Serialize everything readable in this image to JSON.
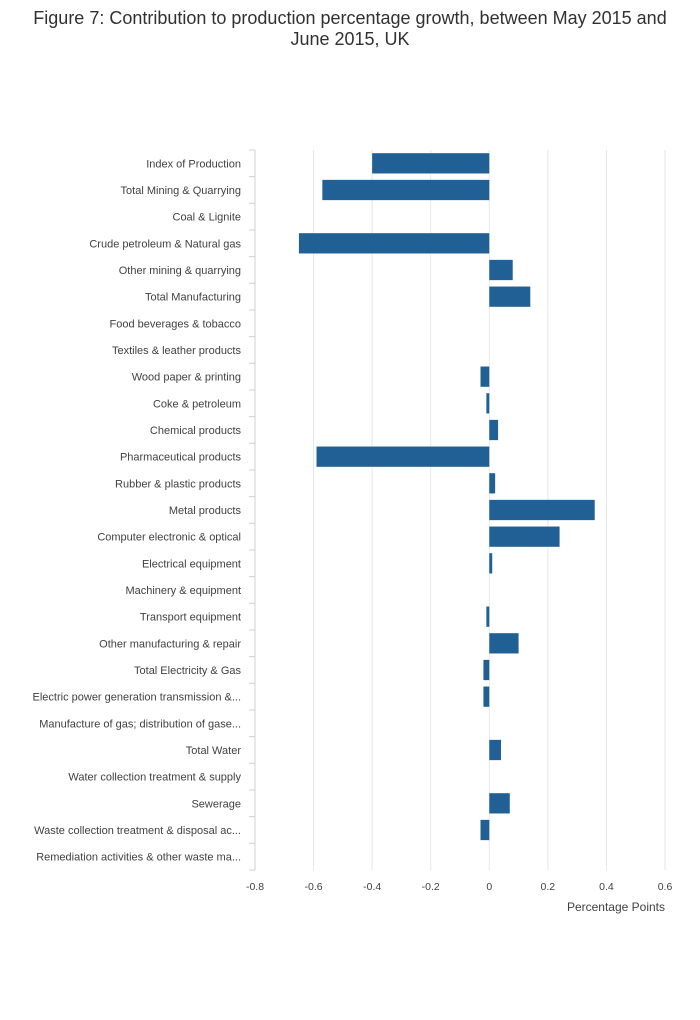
{
  "chart_data": {
    "type": "bar",
    "orientation": "horizontal",
    "title": "Figure 7: Contribution to production percentage growth, between May 2015 and June 2015, UK",
    "xlabel": "Percentage Points",
    "ylabel": "",
    "xlim": [
      -0.8,
      0.6
    ],
    "xticks": [
      "-0.8",
      "-0.6",
      "-0.4",
      "-0.2",
      "0",
      "0.2",
      "0.4",
      "0.6"
    ],
    "grid": true,
    "legend": "none",
    "color": "#206095",
    "categories": [
      "Index of Production",
      "Total Mining & Quarrying",
      "Coal & Lignite",
      "Crude petroleum & Natural gas",
      "Other mining & quarrying",
      "Total Manufacturing",
      "Food beverages & tobacco",
      "Textiles & leather products",
      "Wood paper & printing",
      "Coke & petroleum",
      "Chemical products",
      "Pharmaceutical products",
      "Rubber & plastic products",
      "Metal products",
      "Computer electronic & optical",
      "Electrical equipment",
      "Machinery & equipment",
      "Transport equipment",
      "Other manufacturing & repair",
      "Total Electricity & Gas",
      "Electric power generation transmission &...",
      "Manufacture of gas; distribution of gase...",
      "Total Water",
      "Water collection treatment & supply",
      "Sewerage",
      "Waste collection treatment & disposal ac...",
      "Remediation activities & other waste ma..."
    ],
    "values": [
      -0.4,
      -0.57,
      0.0,
      -0.65,
      0.08,
      0.14,
      0.0,
      0.0,
      -0.03,
      -0.01,
      0.03,
      -0.59,
      0.02,
      0.36,
      0.24,
      0.01,
      0.0,
      -0.01,
      0.1,
      -0.02,
      -0.02,
      0.0,
      0.04,
      0.0,
      0.07,
      -0.03,
      0.0
    ]
  }
}
